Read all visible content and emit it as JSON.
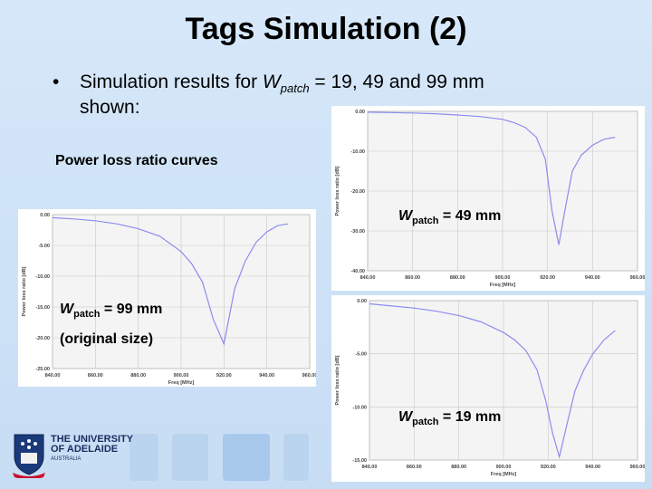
{
  "title": "Tags Simulation (2)",
  "bullet": {
    "symbol": "•",
    "text_before": "Simulation results for ",
    "var": "W",
    "var_sub": "patch",
    "text_after": " = 19, 49 and 99 mm",
    "line2": "shown:"
  },
  "section_label": "Power loss ratio curves",
  "labels": {
    "w49": {
      "var": "W",
      "sub": "patch",
      "value": " = 49 mm"
    },
    "w99": {
      "var": "W",
      "sub": "patch",
      "value": " = 99 mm",
      "note": "(original size)"
    },
    "w19": {
      "var": "W",
      "sub": "patch",
      "value": " = 19 mm"
    }
  },
  "footer": {
    "line1": "THE UNIVERSITY",
    "line2": "OF ADELAIDE",
    "line3": "AUSTRALIA"
  },
  "colors": {
    "curve": "#8c8cf0",
    "grid": "#c8c8c8",
    "background": "#cfe3f7",
    "plot_bg": "#f4f4f4"
  },
  "chart_data": [
    {
      "id": "w49",
      "type": "line",
      "xlabel": "Freq [MHz]",
      "ylabel": "Power loss ratio [dB]",
      "xlim": [
        840,
        960
      ],
      "ylim": [
        -40,
        0
      ],
      "xticks": [
        "840.00",
        "860.00",
        "880.00",
        "900.00",
        "920.00",
        "940.00",
        "960.00"
      ],
      "yticks": [
        "0.00",
        "-10.00",
        "-20.00",
        "-30.00",
        "-40.00"
      ],
      "grid": true,
      "x": [
        840,
        850,
        860,
        870,
        880,
        890,
        900,
        905,
        910,
        915,
        919,
        922,
        925,
        928,
        931,
        935,
        940,
        945,
        950
      ],
      "y": [
        -0.2,
        -0.3,
        -0.4,
        -0.6,
        -0.9,
        -1.3,
        -2.0,
        -2.8,
        -4.0,
        -6.5,
        -12,
        -25,
        -33.5,
        -24,
        -15,
        -11,
        -8.5,
        -7,
        -6.5
      ]
    },
    {
      "id": "w99",
      "type": "line",
      "xlabel": "Freq [MHz]",
      "ylabel": "Power loss ratio [dB]",
      "xlim": [
        840,
        960
      ],
      "ylim": [
        -25,
        0
      ],
      "xticks": [
        "840.00",
        "860.00",
        "880.00",
        "900.00",
        "920.00",
        "940.00",
        "960.00"
      ],
      "yticks": [
        "0.00",
        "-5.00",
        "-10.00",
        "-15.00",
        "-20.00",
        "-25.00"
      ],
      "grid": true,
      "x": [
        840,
        850,
        860,
        870,
        880,
        890,
        900,
        905,
        910,
        915,
        920,
        925,
        930,
        935,
        940,
        945,
        950
      ],
      "y": [
        -0.5,
        -0.7,
        -1.0,
        -1.5,
        -2.3,
        -3.5,
        -6.0,
        -8.0,
        -11.0,
        -17.0,
        -21.0,
        -12.0,
        -7.5,
        -4.5,
        -2.8,
        -1.8,
        -1.5
      ]
    },
    {
      "id": "w19",
      "type": "line",
      "xlabel": "Freq [MHz]",
      "ylabel": "Power loss ratio [dB]",
      "xlim": [
        840,
        960
      ],
      "ylim": [
        -15,
        0
      ],
      "xticks": [
        "840.00",
        "860.00",
        "880.00",
        "900.00",
        "920.00",
        "940.00",
        "960.00"
      ],
      "yticks": [
        "0.00",
        "-5.00",
        "-10.00",
        "-15.00"
      ],
      "grid": true,
      "x": [
        840,
        850,
        860,
        870,
        880,
        890,
        900,
        905,
        910,
        915,
        919,
        922,
        925,
        928,
        932,
        936,
        940,
        945,
        950
      ],
      "y": [
        -0.3,
        -0.5,
        -0.7,
        -1.0,
        -1.4,
        -2.0,
        -3.0,
        -3.7,
        -4.7,
        -6.5,
        -9.5,
        -12.5,
        -14.7,
        -12,
        -8.5,
        -6.5,
        -5.0,
        -3.7,
        -2.8
      ]
    }
  ]
}
